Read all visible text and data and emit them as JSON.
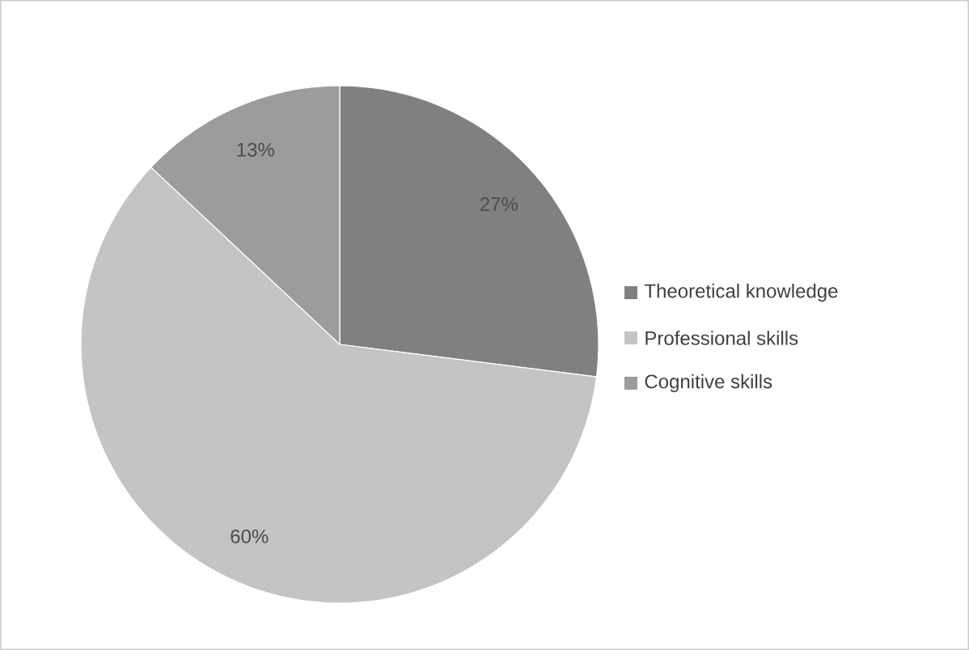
{
  "chart_data": {
    "type": "pie",
    "categories": [
      "Theoretical knowledge",
      "Professional skills",
      "Cognitive skills"
    ],
    "values": [
      27,
      60,
      13
    ],
    "colors": [
      "#808080",
      "#c4c4c4",
      "#9c9c9c"
    ],
    "value_labels": [
      "27%",
      "60%",
      "13%"
    ],
    "legend": "right"
  }
}
